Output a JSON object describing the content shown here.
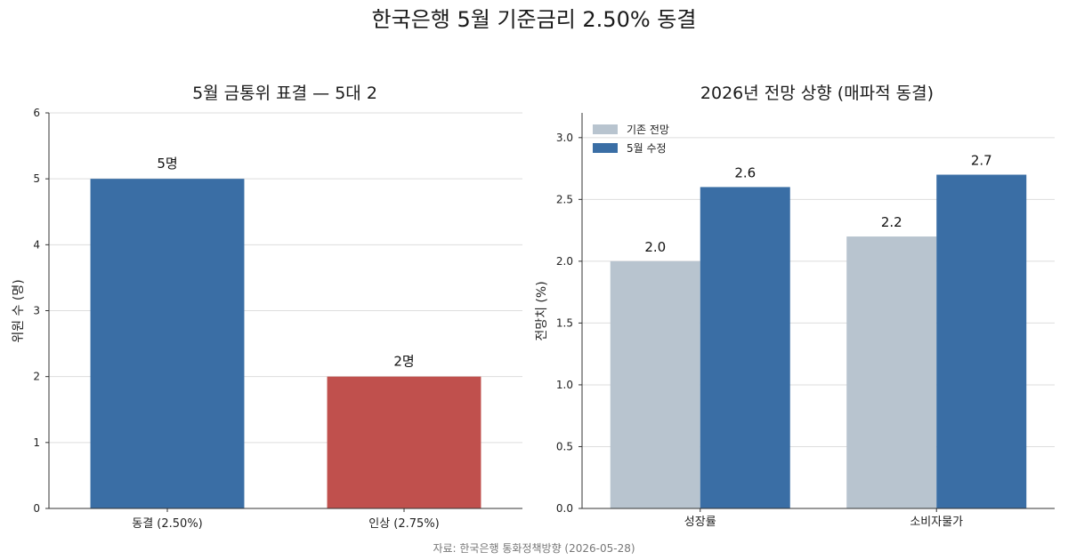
{
  "title": "한국은행 5월 기준금리 2.50% 동결",
  "source": "자료: 한국은행 통화정책방향 (2026-05-28)",
  "colors": {
    "freeze": "#3a6ea5",
    "hike": "#c0504d",
    "prior": "#b8c4cf",
    "revised": "#3a6ea5"
  },
  "chart_data": [
    {
      "type": "bar",
      "title": "5월 금통위 표결 — 5대 2",
      "ylabel": "위원 수 (명)",
      "xlabel": "",
      "ylim": [
        0,
        6
      ],
      "yticks": [
        "0",
        "1",
        "2",
        "3",
        "4",
        "5",
        "6"
      ],
      "categories": [
        "동결 (2.50%)",
        "인상 (2.75%)"
      ],
      "values": [
        5,
        2
      ],
      "data_labels": [
        "5명",
        "2명"
      ],
      "grid": true
    },
    {
      "type": "bar",
      "title": "2026년 전망 상향 (매파적 동결)",
      "ylabel": "전망치 (%)",
      "xlabel": "",
      "ylim": [
        0,
        3.2
      ],
      "yticks": [
        "0.0",
        "0.5",
        "1.0",
        "1.5",
        "2.0",
        "2.5",
        "3.0"
      ],
      "categories": [
        "성장률",
        "소비자물가"
      ],
      "series": [
        {
          "name": "기존 전망",
          "values": [
            2.0,
            2.2
          ],
          "labels": [
            "2.0",
            "2.2"
          ]
        },
        {
          "name": "5월 수정",
          "values": [
            2.6,
            2.7
          ],
          "labels": [
            "2.6",
            "2.7"
          ]
        }
      ],
      "legend": "top-left",
      "grid": true
    }
  ]
}
